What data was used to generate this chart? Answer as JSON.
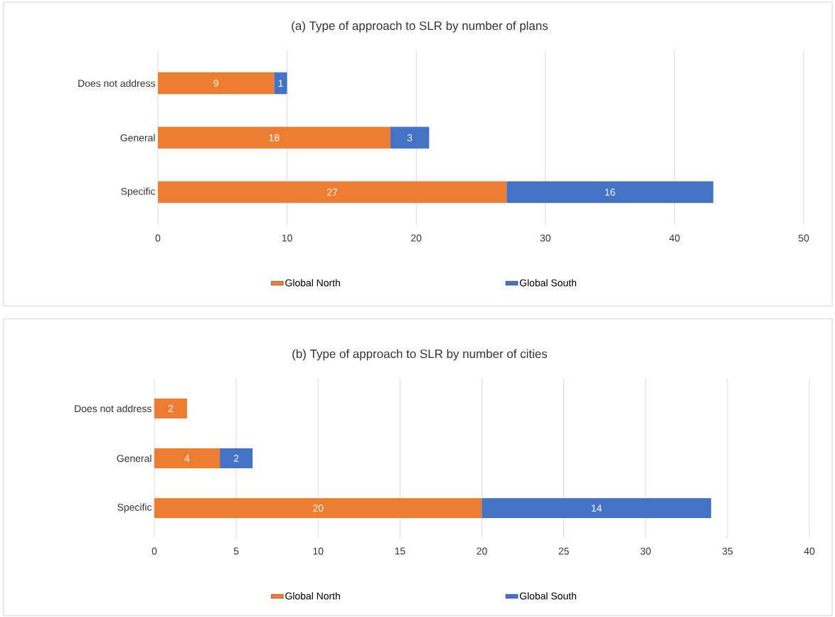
{
  "chart_data": [
    {
      "type": "bar",
      "orientation": "horizontal",
      "stacked": true,
      "title": "(a) Type of approach to SLR by number of plans",
      "categories": [
        "Does not address",
        "General",
        "Specific"
      ],
      "series": [
        {
          "name": "Global North",
          "color": "#ed7d31",
          "values": [
            9,
            18,
            27
          ]
        },
        {
          "name": "Global South",
          "color": "#4472c4",
          "values": [
            1,
            3,
            16
          ]
        }
      ],
      "xlim": [
        0,
        50
      ],
      "xticks": [
        0,
        10,
        20,
        30,
        40,
        50
      ],
      "grid": "x",
      "legend": "bottom",
      "data_labels": true
    },
    {
      "type": "bar",
      "orientation": "horizontal",
      "stacked": true,
      "title": "(b) Type of approach to SLR by number of cities",
      "categories": [
        "Does not address",
        "General",
        "Specific"
      ],
      "series": [
        {
          "name": "Global North",
          "color": "#ed7d31",
          "values": [
            2,
            4,
            20
          ]
        },
        {
          "name": "Global South",
          "color": "#4472c4",
          "values": [
            null,
            2,
            14
          ]
        }
      ],
      "xlim": [
        0,
        40
      ],
      "xticks": [
        0,
        5,
        10,
        15,
        20,
        25,
        30,
        35,
        40
      ],
      "grid": "x",
      "legend": "bottom",
      "data_labels": true
    }
  ]
}
